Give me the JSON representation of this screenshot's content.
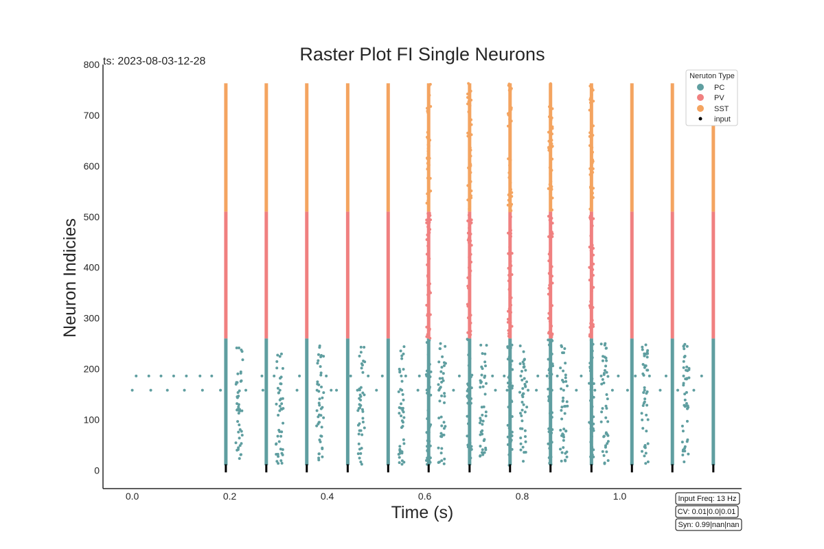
{
  "chart_data": {
    "type": "scatter",
    "title": "Raster Plot FI Single Neurons",
    "xlabel": "Time (s)",
    "ylabel": "Neuron Indicies",
    "timestamp": "ts: 2023-08-03-12-28",
    "xlim": [
      -0.06,
      1.25
    ],
    "ylim": [
      -36,
      800
    ],
    "x_ticks": [
      "0.0",
      "0.2",
      "0.4",
      "0.6",
      "0.8",
      "1.0"
    ],
    "x_tick_values": [
      0.0,
      0.2,
      0.4,
      0.6,
      0.8,
      1.0
    ],
    "y_ticks": [
      "0",
      "100",
      "200",
      "300",
      "400",
      "500",
      "600",
      "700",
      "800"
    ],
    "y_tick_values": [
      0,
      100,
      200,
      300,
      400,
      500,
      600,
      700,
      800
    ],
    "grid": false,
    "legend_position": "top-right",
    "legend_title": "Neruton Type",
    "series": [
      {
        "name": "PC",
        "color": "#5f9ea0",
        "neuron_range": [
          10,
          260
        ]
      },
      {
        "name": "PV",
        "color": "#f08080",
        "neuron_range": [
          260,
          510
        ]
      },
      {
        "name": "SST",
        "color": "#f4a460",
        "neuron_range": [
          510,
          763
        ]
      },
      {
        "name": "input",
        "color": "#000000",
        "neuron_range": [
          -4,
          12
        ]
      }
    ],
    "burst_times": [
      0.192,
      0.275,
      0.358,
      0.442,
      0.525,
      0.608,
      0.692,
      0.775,
      0.858,
      0.942,
      1.025,
      1.108,
      1.192
    ],
    "sparse_pc_spikes": {
      "row_158": [
        0.0,
        0.038,
        0.072,
        0.107,
        0.144,
        0.181,
        0.233,
        0.268,
        0.303,
        0.338,
        0.379,
        0.408,
        0.419,
        0.462,
        0.501,
        0.553,
        0.586,
        0.629,
        0.659,
        0.689,
        0.745,
        0.769,
        0.812,
        0.829,
        0.861,
        0.885,
        0.911,
        0.949,
        0.985,
        1.016,
        1.051,
        1.083,
        1.119,
        1.152
      ],
      "row_186": [
        0.008,
        0.034,
        0.059,
        0.085,
        0.111,
        0.139,
        0.163,
        0.266,
        0.291,
        0.343,
        0.398,
        0.448,
        0.484,
        0.513,
        0.561,
        0.589,
        0.604,
        0.671,
        0.739,
        0.763,
        0.797,
        0.832,
        0.851,
        0.872,
        0.921,
        0.962,
        0.997,
        1.032,
        1.061,
        1.095,
        1.131,
        1.168
      ]
    },
    "annotations": [
      "Input Freq: 13 Hz",
      "CV: 0.01|0.0|0.01",
      "Syn: 0.99|nan|nan"
    ]
  }
}
